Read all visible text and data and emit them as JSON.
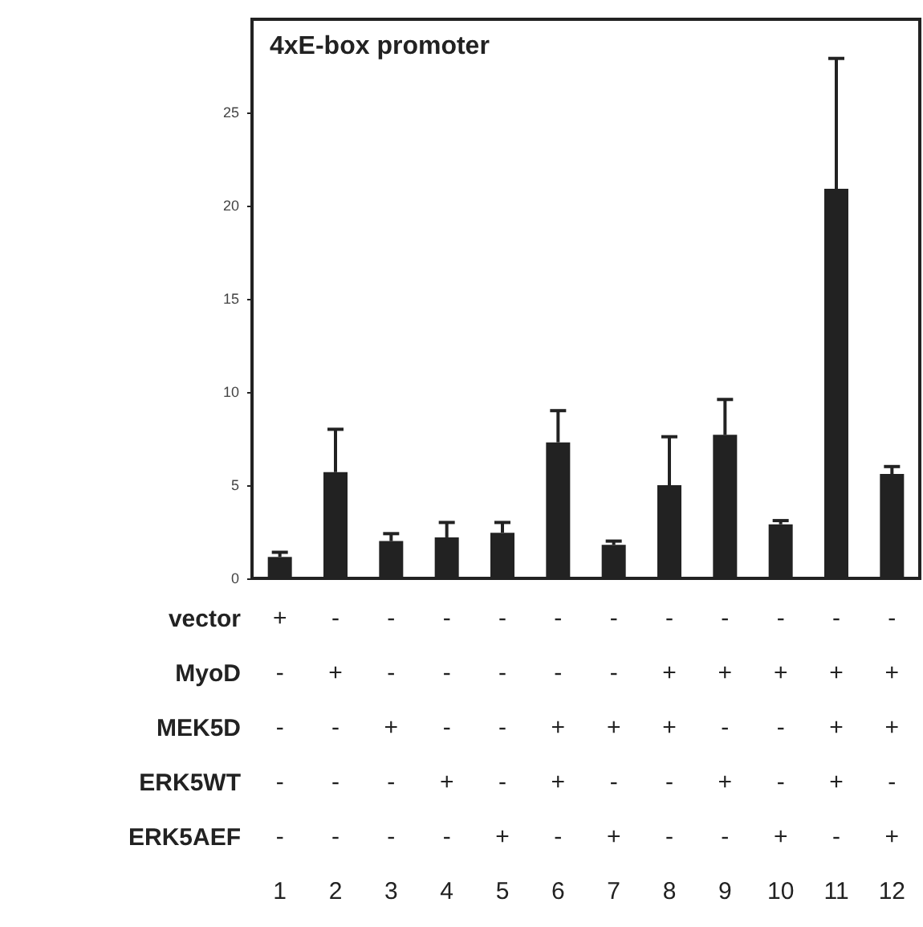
{
  "chart_data": {
    "type": "bar",
    "title": "4xE-box promoter",
    "categories": [
      "+\n-\n-\n-\n-\n1",
      "-\n+\n-\n-\n-\n2",
      "-\n-\n+\n-\n-\n3",
      "-\n-\n-\n+\n-\n4",
      "-\n-\n-\n-\n+\n5",
      "-\n-\n+\n+\n-\n6",
      "-\n-\n+\n-\n+\n7",
      "-\n+\n+\n-\n-\n8",
      "-\n+\n-\n+\n-\n9",
      "-\n+\n-\n-\n+\n10",
      "-\n+\n+\n+\n-\n11",
      "-\n+\n+\n-\n+\n12"
    ],
    "values": [
      1.15,
      5.7,
      2.0,
      2.2,
      2.45,
      7.3,
      1.8,
      5.0,
      7.7,
      2.9,
      20.9,
      5.6
    ],
    "errors": [
      [
        1.15,
        1.4
      ],
      [
        5.7,
        8.0
      ],
      [
        2.0,
        2.4
      ],
      [
        2.2,
        3.0
      ],
      [
        2.45,
        3.0
      ],
      [
        7.3,
        9.0
      ],
      [
        1.8,
        2.0
      ],
      [
        5.0,
        7.6
      ],
      [
        7.7,
        9.6
      ],
      [
        2.9,
        3.1
      ],
      [
        20.9,
        27.9
      ],
      [
        5.6,
        6.0
      ]
    ],
    "color": "#222222",
    "ylim": [
      0,
      30
    ],
    "yticks": [
      0,
      5,
      10,
      15,
      20,
      25
    ],
    "annotations": [
      "vector",
      "MyoD",
      "MEK5D",
      "ERK5WT",
      "ERK5AEF"
    ],
    "grid": false
  }
}
